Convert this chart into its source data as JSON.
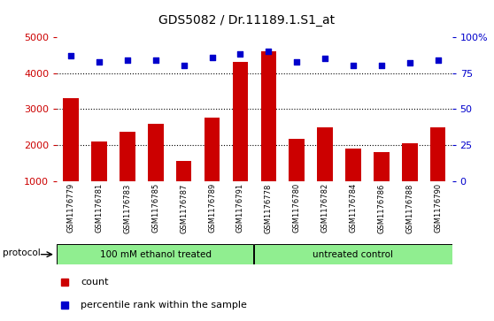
{
  "title": "GDS5082 / Dr.11189.1.S1_at",
  "samples": [
    "GSM1176779",
    "GSM1176781",
    "GSM1176783",
    "GSM1176785",
    "GSM1176787",
    "GSM1176789",
    "GSM1176791",
    "GSM1176778",
    "GSM1176780",
    "GSM1176782",
    "GSM1176784",
    "GSM1176786",
    "GSM1176788",
    "GSM1176790"
  ],
  "counts": [
    3300,
    2100,
    2380,
    2600,
    1560,
    2760,
    4300,
    4600,
    2180,
    2500,
    1900,
    1820,
    2050,
    2490
  ],
  "percentiles": [
    87,
    83,
    84,
    84,
    80,
    86,
    88,
    90,
    83,
    85,
    80,
    80,
    82,
    84
  ],
  "group_labels": [
    "100 mM ethanol treated",
    "untreated control"
  ],
  "bar_color": "#CC0000",
  "dot_color": "#0000CC",
  "ylim_left": [
    1000,
    5000
  ],
  "yticks_left": [
    1000,
    2000,
    3000,
    4000,
    5000
  ],
  "ylim_right": [
    0,
    100
  ],
  "yticks_right": [
    0,
    25,
    50,
    75,
    100
  ],
  "yright_labels": [
    "0",
    "25",
    "50",
    "75",
    "100%"
  ],
  "left_tick_color": "#CC0000",
  "right_tick_color": "#0000CC",
  "protocol_label": "protocol",
  "legend_count": "count",
  "legend_percentile": "percentile rank within the sample",
  "bg_color_samples": "#C8C8C8",
  "figwidth": 5.58,
  "figheight": 3.63,
  "dpi": 100
}
